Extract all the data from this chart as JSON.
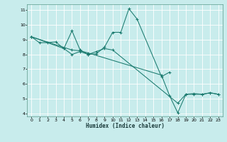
{
  "title": "",
  "xlabel": "Humidex (Indice chaleur)",
  "ylabel": "",
  "bg_color": "#c8ecec",
  "grid_color": "#ffffff",
  "line_color": "#1a7a6e",
  "marker": "+",
  "xlim": [
    -0.5,
    23.5
  ],
  "ylim": [
    3.8,
    11.4
  ],
  "xticks": [
    0,
    1,
    2,
    3,
    4,
    5,
    6,
    7,
    8,
    9,
    10,
    11,
    12,
    13,
    14,
    15,
    16,
    17,
    18,
    19,
    20,
    21,
    22,
    23
  ],
  "yticks": [
    4,
    5,
    6,
    7,
    8,
    9,
    10,
    11
  ],
  "lines": [
    {
      "x": [
        0,
        1,
        2,
        3,
        4,
        5,
        6,
        7,
        8,
        9,
        10,
        11,
        12,
        13,
        16,
        17
      ],
      "y": [
        9.2,
        8.8,
        8.8,
        8.85,
        8.4,
        9.6,
        8.3,
        8.0,
        8.05,
        8.5,
        9.5,
        9.5,
        11.1,
        10.4,
        6.5,
        6.8
      ]
    },
    {
      "x": [
        0,
        4,
        5,
        6,
        7,
        8,
        9,
        10,
        18,
        19,
        20,
        21,
        22,
        23
      ],
      "y": [
        9.2,
        8.4,
        8.0,
        8.2,
        8.0,
        8.2,
        8.4,
        8.3,
        4.7,
        5.3,
        5.3,
        5.3,
        5.4,
        5.3
      ]
    },
    {
      "x": [
        0,
        5,
        6,
        7,
        16,
        17,
        18,
        19,
        20,
        21,
        22,
        23
      ],
      "y": [
        9.2,
        8.3,
        8.25,
        8.1,
        6.6,
        5.2,
        4.05,
        5.3,
        5.35,
        5.3,
        5.4,
        5.3
      ]
    }
  ]
}
